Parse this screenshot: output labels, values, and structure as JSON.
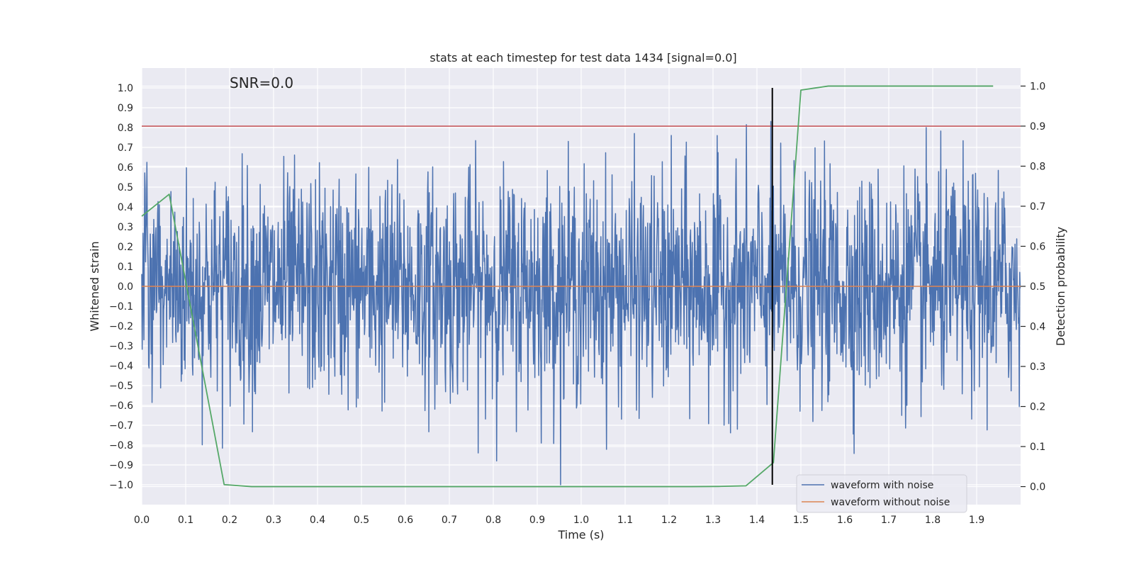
{
  "chart_data": {
    "type": "line",
    "title": "stats at each timestep for test data 1434 [signal=0.0]",
    "xlabel": "Time (s)",
    "ylabel": "Whitened strain",
    "y2label": "Detection probability",
    "xlim": [
      0.0,
      2.0
    ],
    "ylim": [
      -1.1,
      1.1
    ],
    "y2lim": [
      -0.045,
      1.045
    ],
    "xticks": [
      0.0,
      0.1,
      0.2,
      0.3,
      0.4,
      0.5,
      0.6,
      0.7,
      0.8,
      0.9,
      1.0,
      1.1,
      1.2,
      1.3,
      1.4,
      1.5,
      1.6,
      1.7,
      1.8,
      1.9
    ],
    "xtick_labels": [
      "0.0",
      "0.1",
      "0.2",
      "0.3",
      "0.4",
      "0.5",
      "0.6",
      "0.7",
      "0.8",
      "0.9",
      "1.0",
      "1.1",
      "1.2",
      "1.3",
      "1.4",
      "1.5",
      "1.6",
      "1.7",
      "1.8",
      "1.9"
    ],
    "yticks": [
      1.0,
      0.9,
      0.8,
      0.7,
      0.6,
      0.5,
      0.4,
      0.3,
      0.2,
      0.1,
      0.0,
      -0.1,
      -0.2,
      -0.3,
      -0.4,
      -0.5,
      -0.6,
      -0.7,
      -0.8,
      -0.9,
      -1.0
    ],
    "ytick_labels": [
      "1.0",
      "0.9",
      "0.8",
      "0.7",
      "0.6",
      "0.5",
      "0.4",
      "0.3",
      "0.2",
      "0.1",
      "0.0",
      "−0.1",
      "−0.2",
      "−0.3",
      "−0.4",
      "−0.5",
      "−0.6",
      "−0.7",
      "−0.8",
      "−0.9",
      "−1.0"
    ],
    "y2ticks": [
      1.0,
      0.9,
      0.8,
      0.7,
      0.6,
      0.5,
      0.4,
      0.3,
      0.2,
      0.1,
      0.0
    ],
    "y2tick_labels": [
      "1.0",
      "0.9",
      "0.8",
      "0.7",
      "0.6",
      "0.5",
      "0.4",
      "0.3",
      "0.2",
      "0.1",
      "0.0"
    ],
    "grid": true,
    "legend_position": "bottom-right",
    "annotation": "SNR=0.0",
    "threshold_line": {
      "y2": 0.9,
      "color": "#c44e52"
    },
    "vertical_marker": {
      "x": 1.435,
      "y_from": -1.0,
      "y_to": 1.0,
      "color": "#000000"
    },
    "colors": {
      "background": "#eaeaf2",
      "grid": "#ffffff",
      "noise": "#4c72b0",
      "clean": "#dd8452",
      "probability": "#55a868"
    },
    "series": [
      {
        "name": "waveform with noise",
        "axis": "left",
        "color": "#4c72b0",
        "style": "dense-noise",
        "sample_rate": 1024,
        "duration": 2.0,
        "amplitude_std": 0.28,
        "range": [
          -1.0,
          1.0
        ]
      },
      {
        "name": "waveform without noise",
        "axis": "left",
        "color": "#dd8452",
        "x": [
          0.0,
          2.0
        ],
        "y": [
          0.0,
          0.0
        ]
      },
      {
        "name": "detection probability",
        "axis": "right",
        "color": "#55a868",
        "x": [
          0.0,
          0.0625,
          0.1875,
          0.25,
          0.3125,
          0.375,
          0.4375,
          0.5,
          0.5625,
          0.625,
          0.6875,
          0.75,
          0.8125,
          0.875,
          0.9375,
          1.0,
          1.0625,
          1.125,
          1.1875,
          1.25,
          1.3125,
          1.375,
          1.4375,
          1.5,
          1.5625,
          1.625,
          1.6875,
          1.75,
          1.8125,
          1.875,
          1.9375
        ],
        "y": [
          0.675,
          0.73,
          0.005,
          0.0,
          0.0,
          0.0,
          0.0,
          0.0,
          0.0,
          0.0,
          0.0,
          0.0,
          0.0,
          0.0,
          0.0,
          0.0,
          0.0,
          0.0,
          0.0,
          0.0,
          0.0005,
          0.002,
          0.06,
          0.99,
          1.0,
          1.0,
          1.0,
          1.0,
          1.0,
          1.0,
          1.0
        ]
      }
    ]
  }
}
